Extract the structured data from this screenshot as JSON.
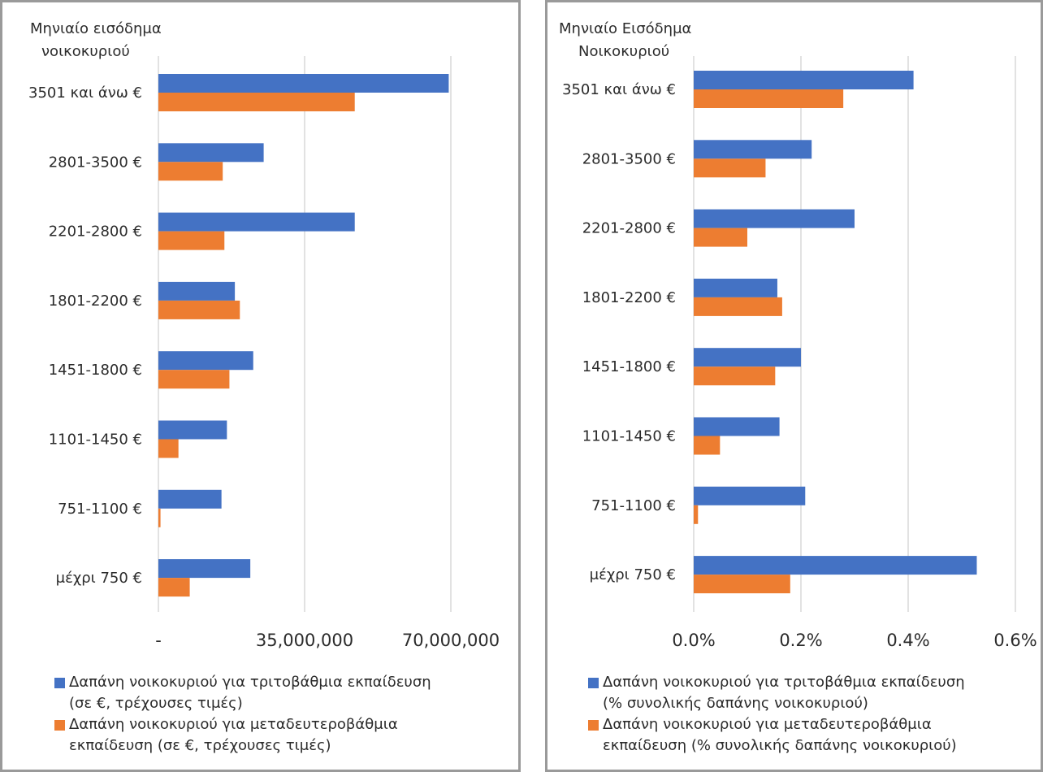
{
  "colors": {
    "blue": "#4472C4",
    "orange": "#ED7D31",
    "grid": "#d9d9d9",
    "border": "#9a9a9a"
  },
  "chart_data": [
    {
      "type": "bar",
      "orientation": "horizontal",
      "axis_title_lines": [
        "Μηνιαίο εισόδημα",
        "νοικοκυριού"
      ],
      "categories": [
        "3501 και άνω €",
        "2801-3500 €",
        "2201-2800 €",
        "1801-2200 €",
        "1451-1800 €",
        "1101-1450 €",
        "751-1100 €",
        "μέχρι 750 €"
      ],
      "series": [
        {
          "name": "Δαπάνη νοικοκυριού για τριτοβάθμια εκπαίδευση (σε €, τρέχουσες τιμές)",
          "legend_lines": [
            "Δαπάνη νοικοκυριού για τριτοβάθμια εκπαίδευση",
            "(σε €, τρέχουσες τιμές)"
          ],
          "color": "#4472C4",
          "values": [
            69500000,
            25200000,
            47000000,
            18300000,
            22700000,
            16400000,
            15100000,
            22000000
          ]
        },
        {
          "name": "Δαπάνη νοικοκυριού για μεταδευτεροβάθμια εκπαίδευση (σε €, τρέχουσες τιμές)",
          "legend_lines": [
            "Δαπάνη νοικοκυριού για μεταδευτεροβάθμια",
            "εκπαίδευση (σε €, τρέχουσες τιμές)"
          ],
          "color": "#ED7D31",
          "values": [
            47000000,
            15400000,
            15800000,
            19500000,
            17000000,
            4800000,
            500000,
            7500000
          ]
        }
      ],
      "xlim": [
        0,
        70000000
      ],
      "ticks": [
        0,
        35000000,
        70000000
      ],
      "tick_labels": [
        "-",
        "35,000,000",
        "70,000,000"
      ],
      "grid": true,
      "legend_position": "bottom"
    },
    {
      "type": "bar",
      "orientation": "horizontal",
      "axis_title_lines": [
        "Μηνιαίο Εισόδημα",
        "Νοικοκυριού"
      ],
      "categories": [
        "3501 και άνω €",
        "2801-3500 €",
        "2201-2800 €",
        "1801-2200 €",
        "1451-1800 €",
        "1101-1450 €",
        "751-1100 €",
        "μέχρι 750 €"
      ],
      "series": [
        {
          "name": "Δαπάνη νοικοκυριού για τριτοβάθμια εκπαίδευση (% συνολικής δαπάνης νοικοκυριού)",
          "legend_lines": [
            "Δαπάνη νοικοκυριού για τριτοβάθμια εκπαίδευση",
            "(% συνολικής δαπάνης νοικοκυριού)"
          ],
          "color": "#4472C4",
          "values": [
            0.41,
            0.22,
            0.3,
            0.156,
            0.2,
            0.16,
            0.208,
            0.528
          ]
        },
        {
          "name": "Δαπάνη νοικοκυριού για μεταδευτεροβάθμια εκπαίδευση (% συνολικής δαπάνης νοικοκυριού)",
          "legend_lines": [
            "Δαπάνη νοικοκυριού για μεταδευτεροβάθμια",
            "εκπαίδευση (% συνολικής δαπάνης νοικοκυριού)"
          ],
          "color": "#ED7D31",
          "values": [
            0.279,
            0.134,
            0.1,
            0.165,
            0.152,
            0.049,
            0.008,
            0.18
          ]
        }
      ],
      "xlim": [
        0,
        0.6
      ],
      "ticks": [
        0,
        0.2,
        0.4,
        0.6
      ],
      "tick_labels": [
        "0.0%",
        "0.2%",
        "0.4%",
        "0.6%"
      ],
      "grid": true,
      "legend_position": "bottom"
    }
  ]
}
